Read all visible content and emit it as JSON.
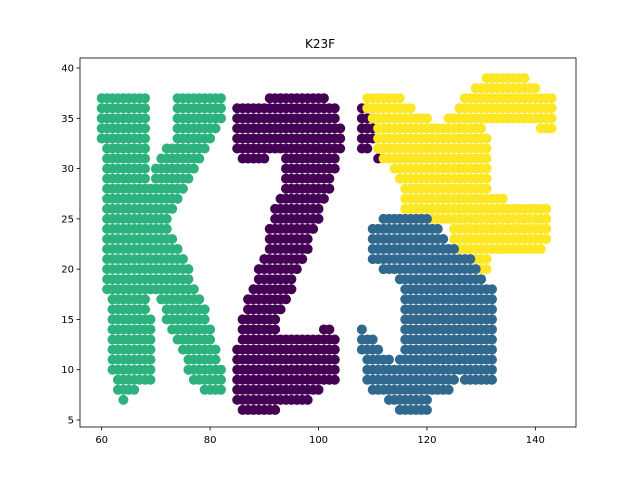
{
  "chart_data": {
    "type": "scatter",
    "title": "K23F",
    "xlabel": "",
    "ylabel": "",
    "xlim": [
      56,
      147.5
    ],
    "ylim": [
      4.3,
      41
    ],
    "xticks": [
      60,
      80,
      100,
      120,
      140
    ],
    "yticks": [
      5,
      10,
      15,
      20,
      25,
      30,
      35,
      40
    ],
    "grid": false,
    "legend": "none",
    "series": [
      {
        "color": "#2db27d",
        "rows": [
          {
            "y": 37,
            "xs": [
              [
                60,
                68
              ],
              [
                74,
                82
              ]
            ]
          },
          {
            "y": 36,
            "xs": [
              [
                60,
                68
              ],
              [
                74,
                82
              ]
            ]
          },
          {
            "y": 35,
            "xs": [
              [
                60,
                68
              ],
              [
                74,
                82
              ]
            ]
          },
          {
            "y": 34,
            "xs": [
              [
                60,
                68
              ],
              [
                74,
                81
              ]
            ]
          },
          {
            "y": 33,
            "xs": [
              [
                60,
                68
              ],
              [
                74,
                80
              ]
            ]
          },
          {
            "y": 32,
            "xs": [
              [
                61,
                68
              ],
              [
                72,
                79
              ]
            ]
          },
          {
            "y": 31,
            "xs": [
              [
                61,
                68
              ],
              [
                71,
                78
              ]
            ]
          },
          {
            "y": 30,
            "xs": [
              [
                61,
                68
              ],
              [
                70,
                77
              ]
            ]
          },
          {
            "y": 29,
            "xs": [
              [
                61,
                68
              ],
              [
                70,
                76
              ]
            ]
          },
          {
            "y": 28,
            "xs": [
              [
                61,
                75
              ]
            ]
          },
          {
            "y": 27,
            "xs": [
              [
                61,
                74
              ]
            ]
          },
          {
            "y": 26,
            "xs": [
              [
                61,
                73
              ]
            ]
          },
          {
            "y": 25,
            "xs": [
              [
                61,
                72
              ]
            ]
          },
          {
            "y": 24,
            "xs": [
              [
                61,
                72
              ]
            ]
          },
          {
            "y": 23,
            "xs": [
              [
                61,
                73
              ]
            ]
          },
          {
            "y": 22,
            "xs": [
              [
                61,
                74
              ]
            ]
          },
          {
            "y": 21,
            "xs": [
              [
                61,
                75
              ]
            ]
          },
          {
            "y": 20,
            "xs": [
              [
                61,
                76
              ]
            ]
          },
          {
            "y": 19,
            "xs": [
              [
                61,
                76
              ]
            ]
          },
          {
            "y": 18,
            "xs": [
              [
                61,
                77
              ]
            ]
          },
          {
            "y": 17,
            "xs": [
              [
                62,
                68
              ],
              [
                71,
                78
              ]
            ]
          },
          {
            "y": 16,
            "xs": [
              [
                62,
                68
              ],
              [
                72,
                79
              ]
            ]
          },
          {
            "y": 15,
            "xs": [
              [
                62,
                69
              ],
              [
                72,
                79
              ]
            ]
          },
          {
            "y": 14,
            "xs": [
              [
                62,
                69
              ],
              [
                73,
                80
              ]
            ]
          },
          {
            "y": 13,
            "xs": [
              [
                62,
                69
              ],
              [
                74,
                80
              ]
            ]
          },
          {
            "y": 12,
            "xs": [
              [
                62,
                69
              ],
              [
                75,
                81
              ]
            ]
          },
          {
            "y": 11,
            "xs": [
              [
                62,
                69
              ],
              [
                76,
                81
              ]
            ]
          },
          {
            "y": 10,
            "xs": [
              [
                62,
                69
              ],
              [
                76,
                82
              ]
            ]
          },
          {
            "y": 9,
            "xs": [
              [
                63,
                69
              ],
              [
                77,
                82
              ]
            ]
          },
          {
            "y": 8,
            "xs": [
              [
                63,
                66
              ],
              [
                79,
                82
              ]
            ]
          },
          {
            "y": 7,
            "xs": [
              [
                64,
                64
              ]
            ]
          }
        ]
      },
      {
        "color": "#440154",
        "rows": [
          {
            "y": 37,
            "xs": [
              [
                91,
                101
              ]
            ]
          },
          {
            "y": 36,
            "xs": [
              [
                85,
                103
              ],
              [
                108,
                109
              ]
            ]
          },
          {
            "y": 35,
            "xs": [
              [
                85,
                103
              ],
              [
                108,
                110
              ]
            ]
          },
          {
            "y": 34,
            "xs": [
              [
                85,
                104
              ],
              [
                108,
                110
              ]
            ]
          },
          {
            "y": 33,
            "xs": [
              [
                85,
                104
              ],
              [
                108,
                110
              ]
            ]
          },
          {
            "y": 32,
            "xs": [
              [
                85,
                104
              ],
              [
                108,
                109
              ]
            ]
          },
          {
            "y": 31,
            "xs": [
              [
                86,
                90
              ],
              [
                94,
                103
              ],
              [
                111,
                111
              ]
            ]
          },
          {
            "y": 30,
            "xs": [
              [
                94,
                103
              ]
            ]
          },
          {
            "y": 29,
            "xs": [
              [
                94,
                102
              ]
            ]
          },
          {
            "y": 28,
            "xs": [
              [
                94,
                102
              ]
            ]
          },
          {
            "y": 27,
            "xs": [
              [
                93,
                101
              ]
            ]
          },
          {
            "y": 26,
            "xs": [
              [
                92,
                100
              ]
            ]
          },
          {
            "y": 25,
            "xs": [
              [
                92,
                100
              ]
            ]
          },
          {
            "y": 24,
            "xs": [
              [
                91,
                99
              ]
            ]
          },
          {
            "y": 23,
            "xs": [
              [
                91,
                98
              ]
            ]
          },
          {
            "y": 22,
            "xs": [
              [
                91,
                98
              ]
            ]
          },
          {
            "y": 21,
            "xs": [
              [
                90,
                97
              ]
            ]
          },
          {
            "y": 20,
            "xs": [
              [
                89,
                96
              ]
            ]
          },
          {
            "y": 19,
            "xs": [
              [
                89,
                95
              ]
            ]
          },
          {
            "y": 18,
            "xs": [
              [
                88,
                95
              ]
            ]
          },
          {
            "y": 17,
            "xs": [
              [
                87,
                94
              ]
            ]
          },
          {
            "y": 16,
            "xs": [
              [
                87,
                93
              ]
            ]
          },
          {
            "y": 15,
            "xs": [
              [
                86,
                92
              ]
            ]
          },
          {
            "y": 14,
            "xs": [
              [
                86,
                92
              ],
              [
                101,
                102
              ]
            ]
          },
          {
            "y": 13,
            "xs": [
              [
                86,
                103
              ]
            ]
          },
          {
            "y": 12,
            "xs": [
              [
                85,
                103
              ]
            ]
          },
          {
            "y": 11,
            "xs": [
              [
                85,
                103
              ]
            ]
          },
          {
            "y": 10,
            "xs": [
              [
                85,
                103
              ]
            ]
          },
          {
            "y": 9,
            "xs": [
              [
                85,
                103
              ]
            ]
          },
          {
            "y": 8,
            "xs": [
              [
                85,
                100
              ]
            ]
          },
          {
            "y": 7,
            "xs": [
              [
                85,
                98
              ]
            ]
          },
          {
            "y": 6,
            "xs": [
              [
                86,
                92
              ]
            ]
          }
        ]
      },
      {
        "color": "#fde725",
        "rows": [
          {
            "y": 39,
            "xs": [
              [
                131,
                138
              ]
            ]
          },
          {
            "y": 38,
            "xs": [
              [
                129,
                140
              ]
            ]
          },
          {
            "y": 37,
            "xs": [
              [
                109,
                115
              ],
              [
                127,
                143
              ]
            ]
          },
          {
            "y": 36,
            "xs": [
              [
                109,
                117
              ],
              [
                126,
                143
              ]
            ]
          },
          {
            "y": 35,
            "xs": [
              [
                110,
                120
              ],
              [
                124,
                143
              ]
            ]
          },
          {
            "y": 34,
            "xs": [
              [
                111,
                130
              ],
              [
                141,
                143
              ]
            ]
          },
          {
            "y": 33,
            "xs": [
              [
                111,
                131
              ]
            ]
          },
          {
            "y": 32,
            "xs": [
              [
                111,
                131
              ]
            ]
          },
          {
            "y": 31,
            "xs": [
              [
                112,
                131
              ]
            ]
          },
          {
            "y": 30,
            "xs": [
              [
                114,
                131
              ]
            ]
          },
          {
            "y": 29,
            "xs": [
              [
                115,
                131
              ]
            ]
          },
          {
            "y": 28,
            "xs": [
              [
                116,
                131
              ]
            ]
          },
          {
            "y": 27,
            "xs": [
              [
                116,
                134
              ]
            ]
          },
          {
            "y": 26,
            "xs": [
              [
                116,
                142
              ]
            ]
          },
          {
            "y": 25,
            "xs": [
              [
                118,
                142
              ]
            ]
          },
          {
            "y": 24,
            "xs": [
              [
                120,
                121
              ],
              [
                125,
                142
              ]
            ]
          },
          {
            "y": 23,
            "xs": [
              [
                125,
                142
              ]
            ]
          },
          {
            "y": 22,
            "xs": [
              [
                126,
                141
              ]
            ]
          },
          {
            "y": 21,
            "xs": [
              [
                128,
                131
              ]
            ]
          },
          {
            "y": 20,
            "xs": [
              [
                130,
                131
              ]
            ]
          }
        ]
      },
      {
        "color": "#31688e",
        "rows": [
          {
            "y": 25,
            "xs": [
              [
                112,
                120
              ]
            ]
          },
          {
            "y": 24,
            "xs": [
              [
                110,
                122
              ]
            ]
          },
          {
            "y": 23,
            "xs": [
              [
                110,
                123
              ]
            ]
          },
          {
            "y": 22,
            "xs": [
              [
                110,
                125
              ]
            ]
          },
          {
            "y": 21,
            "xs": [
              [
                110,
                128
              ]
            ]
          },
          {
            "y": 20,
            "xs": [
              [
                112,
                129
              ]
            ]
          },
          {
            "y": 19,
            "xs": [
              [
                115,
                130
              ]
            ]
          },
          {
            "y": 18,
            "xs": [
              [
                116,
                132
              ]
            ]
          },
          {
            "y": 17,
            "xs": [
              [
                116,
                132
              ]
            ]
          },
          {
            "y": 16,
            "xs": [
              [
                116,
                132
              ]
            ]
          },
          {
            "y": 15,
            "xs": [
              [
                116,
                132
              ]
            ]
          },
          {
            "y": 14,
            "xs": [
              [
                108,
                108
              ],
              [
                116,
                132
              ]
            ]
          },
          {
            "y": 13,
            "xs": [
              [
                108,
                110
              ],
              [
                116,
                132
              ]
            ]
          },
          {
            "y": 12,
            "xs": [
              [
                108,
                111
              ],
              [
                116,
                132
              ]
            ]
          },
          {
            "y": 11,
            "xs": [
              [
                109,
                113
              ],
              [
                115,
                132
              ]
            ]
          },
          {
            "y": 10,
            "xs": [
              [
                109,
                132
              ]
            ]
          },
          {
            "y": 9,
            "xs": [
              [
                109,
                125
              ],
              [
                127,
                132
              ]
            ]
          },
          {
            "y": 8,
            "xs": [
              [
                110,
                124
              ]
            ]
          },
          {
            "y": 7,
            "xs": [
              [
                113,
                120
              ]
            ]
          },
          {
            "y": 6,
            "xs": [
              [
                115,
                120
              ]
            ]
          }
        ]
      }
    ]
  }
}
